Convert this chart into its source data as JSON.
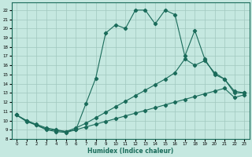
{
  "xlabel": "Humidex (Indice chaleur)",
  "bg_color": "#c5e8e0",
  "grid_color": "#a0c8be",
  "line_color": "#1a6b5a",
  "xlim": [
    -0.5,
    23.5
  ],
  "ylim": [
    8,
    22.8
  ],
  "xticks": [
    0,
    1,
    2,
    3,
    4,
    5,
    6,
    7,
    8,
    9,
    10,
    11,
    12,
    13,
    14,
    15,
    16,
    17,
    18,
    19,
    20,
    21,
    22,
    23
  ],
  "yticks": [
    8,
    9,
    10,
    11,
    12,
    13,
    14,
    15,
    16,
    17,
    18,
    19,
    20,
    21,
    22
  ],
  "curve1_x": [
    0,
    1,
    2,
    3,
    4,
    5,
    6,
    7,
    8,
    9,
    10,
    11,
    12,
    13,
    14,
    15,
    16,
    17,
    18,
    19,
    20,
    21,
    22,
    23
  ],
  "curve1_y": [
    10.6,
    10.0,
    9.5,
    9.0,
    8.8,
    8.7,
    9.0,
    11.8,
    14.6,
    19.5,
    20.4,
    20.0,
    22.0,
    22.0,
    20.5,
    22.0,
    21.5,
    17.0,
    19.8,
    16.7,
    15.0,
    14.5,
    13.0,
    13.0
  ],
  "curve2_x": [
    0,
    1,
    2,
    3,
    4,
    5,
    6,
    7,
    8,
    9,
    10,
    11,
    12,
    13,
    14,
    15,
    16,
    17,
    18,
    19,
    20,
    21,
    22,
    23
  ],
  "curve2_y": [
    10.6,
    9.9,
    9.5,
    9.1,
    8.9,
    8.8,
    9.2,
    9.7,
    10.3,
    10.9,
    11.5,
    12.1,
    12.7,
    13.3,
    13.9,
    14.5,
    15.2,
    16.7,
    16.0,
    16.5,
    15.2,
    14.5,
    13.2,
    13.0
  ],
  "curve3_x": [
    0,
    1,
    2,
    3,
    4,
    5,
    6,
    7,
    8,
    9,
    10,
    11,
    12,
    13,
    14,
    15,
    16,
    17,
    18,
    19,
    20,
    21,
    22,
    23
  ],
  "curve3_y": [
    10.6,
    10.0,
    9.6,
    9.2,
    9.0,
    8.8,
    9.0,
    9.3,
    9.6,
    9.9,
    10.2,
    10.5,
    10.8,
    11.1,
    11.4,
    11.7,
    12.0,
    12.3,
    12.6,
    12.9,
    13.2,
    13.5,
    12.5,
    12.8
  ]
}
